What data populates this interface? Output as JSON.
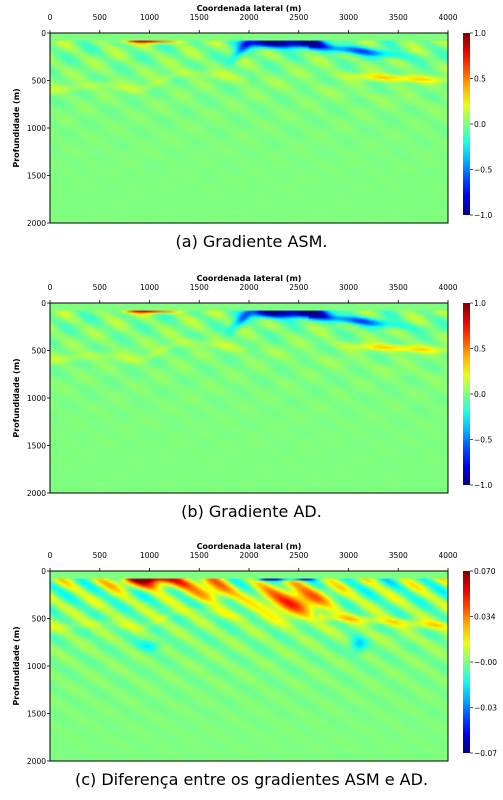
{
  "chart_data": [
    {
      "type": "heatmap",
      "xlabel": "Coordenada lateral (m)",
      "ylabel": "Profundidade (m)",
      "xlim": [
        0,
        4000
      ],
      "ylim": [
        2000,
        0
      ],
      "x_ticks": [
        "0",
        "500",
        "1000",
        "1500",
        "2000",
        "2500",
        "3000",
        "3500",
        "4000"
      ],
      "y_ticks": [
        "0",
        "500",
        "1000",
        "1500",
        "2000"
      ],
      "colorbar": {
        "range": [
          -1.0,
          1.0
        ],
        "ticks": [
          "1.0",
          "0.5",
          "0.0",
          "−0.5",
          "−1.0"
        ]
      },
      "colormap": "jet",
      "caption": "(a) Gradiente ASM.",
      "features": [
        {
          "kind": "positive",
          "x": [
            700,
            1300
          ],
          "depth": 100,
          "amplitude": 0.9
        },
        {
          "kind": "negative",
          "x": [
            1900,
            2750
          ],
          "depth": 120,
          "amplitude": -1.0
        },
        {
          "kind": "negative",
          "x": [
            2750,
            3300
          ],
          "depth": 200,
          "amplitude": -0.7
        }
      ]
    },
    {
      "type": "heatmap",
      "xlabel": "Coordenada lateral (m)",
      "ylabel": "Profundidade (m)",
      "xlim": [
        0,
        4000
      ],
      "ylim": [
        2000,
        0
      ],
      "x_ticks": [
        "0",
        "500",
        "1000",
        "1500",
        "2000",
        "2500",
        "3000",
        "3500",
        "4000"
      ],
      "y_ticks": [
        "0",
        "500",
        "1000",
        "1500",
        "2000"
      ],
      "colorbar": {
        "range": [
          -1.0,
          1.0
        ],
        "ticks": [
          "1.0",
          "0.5",
          "0.0",
          "−0.5",
          "−1.0"
        ]
      },
      "colormap": "jet",
      "caption": "(b) Gradiente AD.",
      "features": [
        {
          "kind": "positive",
          "x": [
            700,
            1300
          ],
          "depth": 100,
          "amplitude": 0.8
        },
        {
          "kind": "negative",
          "x": [
            1900,
            2800
          ],
          "depth": 130,
          "amplitude": -1.0
        },
        {
          "kind": "negative",
          "x": [
            2800,
            3500
          ],
          "depth": 180,
          "amplitude": -0.6
        }
      ]
    },
    {
      "type": "heatmap",
      "xlabel": "Coordenada lateral (m)",
      "ylabel": "Profundidade (m)",
      "xlim": [
        0,
        4000
      ],
      "ylim": [
        2000,
        0
      ],
      "x_ticks": [
        "0",
        "500",
        "1000",
        "1500",
        "2000",
        "2500",
        "3000",
        "3500",
        "4000"
      ],
      "y_ticks": [
        "0",
        "500",
        "1000",
        "1500",
        "2000"
      ],
      "colorbar": {
        "range": [
          -0.07,
          0.07
        ],
        "ticks": [
          "0.070",
          "0.034",
          "−0.00",
          "−0.03",
          "−0.07"
        ]
      },
      "colormap": "jet",
      "caption": "(c) Diferença entre os gradientes ASM e AD.",
      "features": [
        {
          "kind": "positive",
          "x": [
            300,
            1900
          ],
          "depth": 200,
          "amplitude": 0.06
        },
        {
          "kind": "positive",
          "x": [
            2100,
            2800
          ],
          "depth": 350,
          "amplitude": 0.05
        },
        {
          "kind": "negative",
          "x": [
            2050,
            2700
          ],
          "depth": 90,
          "amplitude": -0.06
        }
      ]
    }
  ]
}
